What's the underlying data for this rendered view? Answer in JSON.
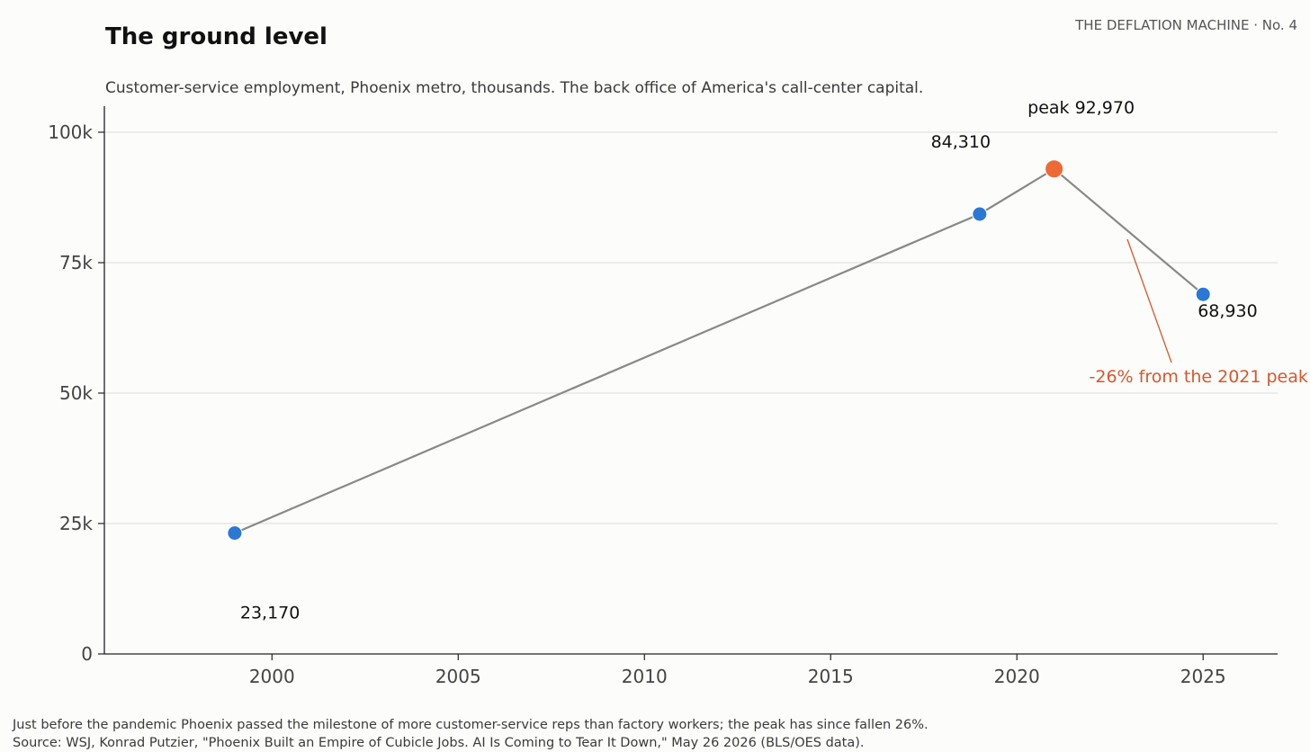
{
  "header": {
    "title": "The ground level",
    "series_tag": "THE DEFLATION MACHINE · No. 4",
    "subtitle": "Customer-service employment, Phoenix metro, thousands. The back office of America's call-center capital."
  },
  "footer": {
    "note": "Just before the pandemic Phoenix passed the milestone of more customer-service reps than factory workers; the peak has since fallen 26%.",
    "source": "Source: WSJ, Konrad Putzier, \"Phoenix Built an Empire of Cubicle Jobs. AI Is Coming to Tear It Down,\" May 26 2026 (BLS/OES data)."
  },
  "chart_data": {
    "type": "line",
    "title": "The ground level",
    "xlabel": "",
    "ylabel": "",
    "xlim": [
      1995.5,
      2027
    ],
    "ylim": [
      0,
      105000
    ],
    "x_ticks": [
      2000,
      2005,
      2010,
      2015,
      2020,
      2025
    ],
    "y_ticks": [
      {
        "value": 0,
        "label": "0"
      },
      {
        "value": 25000,
        "label": "25k"
      },
      {
        "value": 50000,
        "label": "50k"
      },
      {
        "value": 75000,
        "label": "75k"
      },
      {
        "value": 100000,
        "label": "100k"
      }
    ],
    "grid": "horizontal",
    "series": [
      {
        "points": [
          {
            "x": 1999,
            "y": 23170,
            "label": "23,170",
            "highlight": false
          },
          {
            "x": 2019,
            "y": 84310,
            "label": "84,310",
            "highlight": false
          },
          {
            "x": 2021,
            "y": 92970,
            "label": "peak 92,970",
            "highlight": true
          },
          {
            "x": 2025,
            "y": 68930,
            "label": "68,930",
            "highlight": false
          }
        ]
      }
    ],
    "annotation": {
      "text": "-26% from the 2021 peak",
      "color": "#d9562b"
    },
    "colors": {
      "line": "#888888",
      "point": "#2b78d4",
      "peak": "#ee6a35",
      "grid": "#e2e2e2",
      "axis": "#222222",
      "tick_label": "#444444"
    }
  }
}
